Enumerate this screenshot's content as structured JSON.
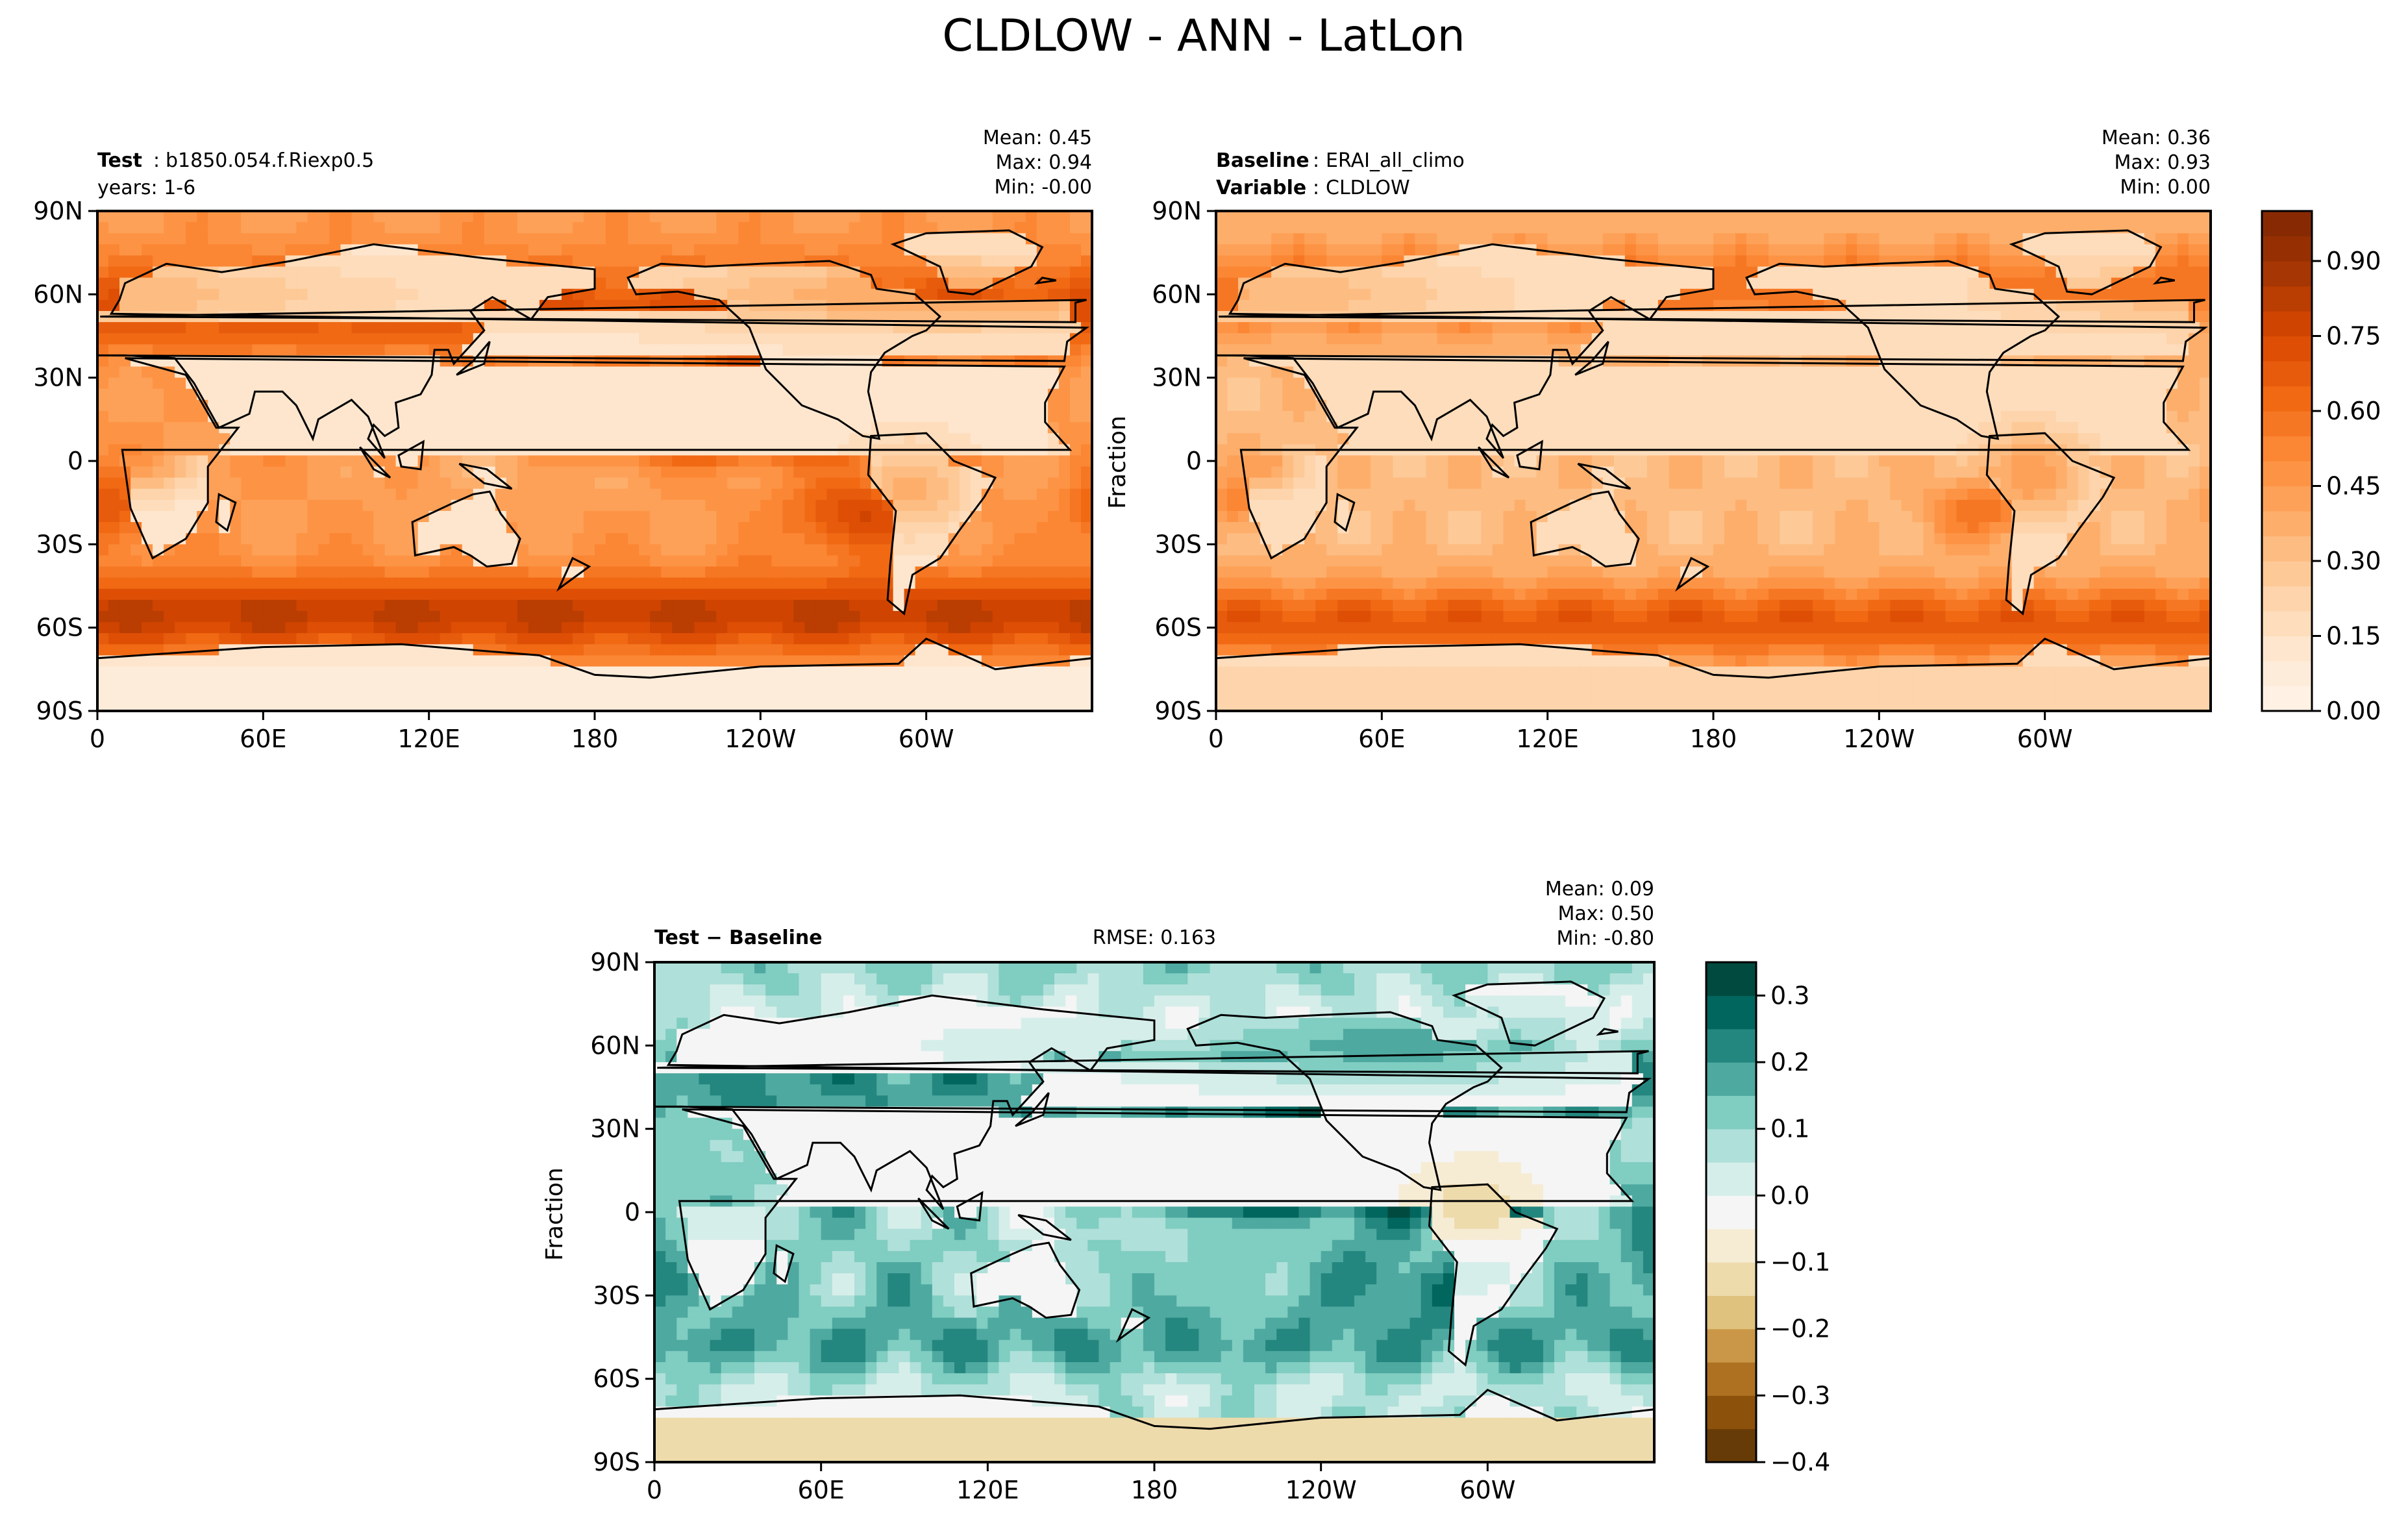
{
  "figure": {
    "suptitle": "CLDLOW - ANN - LatLon"
  },
  "chart_data": [
    {
      "type": "heatmap",
      "id": "test",
      "left_bold": "Test",
      "left_sep": ":",
      "left_value": "b1850.054.f.Riexp0.5",
      "left_line2": "years: 1-6",
      "stats": [
        "Mean:  0.45",
        "Max:  0.94",
        "Min: -0.00"
      ],
      "ylabel": "",
      "x_ticks": [
        "0",
        "60E",
        "120E",
        "180",
        "120W",
        "60W"
      ],
      "y_ticks": [
        "90N",
        "60N",
        "30N",
        "0",
        "30S",
        "60S",
        "90S"
      ],
      "xlim": [
        0,
        360
      ],
      "ylim": [
        -90,
        90
      ],
      "colormap": "Oranges",
      "value_range": [
        0.0,
        1.0
      ],
      "mean": 0.45,
      "max": 0.94,
      "min": -0.0
    },
    {
      "type": "heatmap",
      "id": "baseline",
      "left_bold": "Baseline",
      "left_sep": ":",
      "left_value": "ERAI_all_climo",
      "left_bold2": "Variable",
      "left_value2": "CLDLOW",
      "stats": [
        "Mean:  0.36",
        "Max:  0.93",
        "Min:  0.00"
      ],
      "ylabel": "Fraction",
      "x_ticks": [
        "0",
        "60E",
        "120E",
        "180",
        "120W",
        "60W"
      ],
      "y_ticks": [
        "90N",
        "60N",
        "30N",
        "0",
        "30S",
        "60S",
        "90S"
      ],
      "xlim": [
        0,
        360
      ],
      "ylim": [
        -90,
        90
      ],
      "colormap": "Oranges",
      "value_range": [
        0.0,
        1.0
      ],
      "mean": 0.36,
      "max": 0.93,
      "min": 0.0,
      "colorbar": {
        "ticks": [
          "0.00",
          "0.15",
          "0.30",
          "0.45",
          "0.60",
          "0.75",
          "0.90"
        ],
        "tick_values": [
          0.0,
          0.15,
          0.3,
          0.45,
          0.6,
          0.75,
          0.9
        ],
        "range": [
          0.0,
          1.0
        ],
        "levels": 20
      }
    },
    {
      "type": "heatmap",
      "id": "diff",
      "left_bold": "Test − Baseline",
      "center_text": "RMSE: 0.163",
      "stats": [
        "Mean:  0.09",
        "Max:  0.50",
        "Min: -0.80"
      ],
      "ylabel": "Fraction",
      "x_ticks": [
        "0",
        "60E",
        "120E",
        "180",
        "120W",
        "60W"
      ],
      "y_ticks": [
        "90N",
        "60N",
        "30N",
        "0",
        "30S",
        "60S",
        "90S"
      ],
      "xlim": [
        0,
        360
      ],
      "ylim": [
        -90,
        90
      ],
      "colormap": "BrBG",
      "value_range": [
        -0.4,
        0.35
      ],
      "mean": 0.09,
      "max": 0.5,
      "min": -0.8,
      "rmse": 0.163,
      "colorbar": {
        "ticks": [
          "0.3",
          "0.2",
          "0.1",
          "0.0",
          "−0.1",
          "−0.2",
          "−0.3",
          "−0.4"
        ],
        "tick_values": [
          0.3,
          0.2,
          0.1,
          0.0,
          -0.1,
          -0.2,
          -0.3,
          -0.4
        ],
        "range": [
          -0.4,
          0.35
        ],
        "levels": 15
      }
    }
  ],
  "colors": {
    "oranges": [
      "#fff5eb",
      "#fee6ce",
      "#fdd0a2",
      "#fdae6b",
      "#fd8d3c",
      "#f16913",
      "#d94801",
      "#a63603",
      "#7f2704"
    ],
    "brbg": [
      "#543005",
      "#8c510a",
      "#bf812d",
      "#dfc27d",
      "#f6e8c3",
      "#f5f5f5",
      "#c7eae5",
      "#80cdc1",
      "#35978f",
      "#01665e",
      "#003c30"
    ]
  }
}
